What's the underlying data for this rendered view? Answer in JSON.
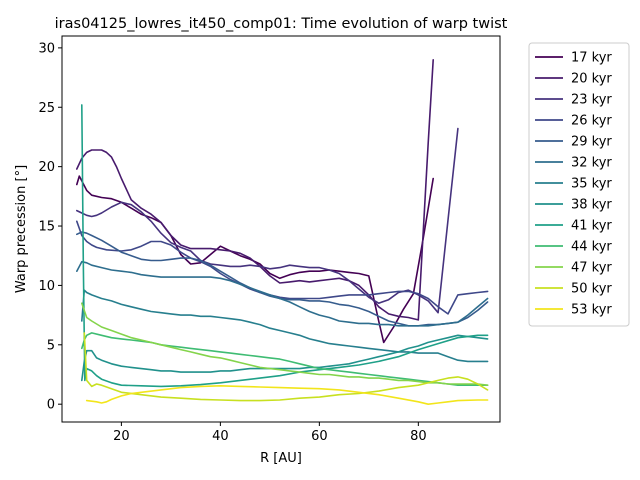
{
  "chart_data": {
    "type": "line",
    "title": "iras04125_lowres_it450_comp01: Time evolution of warp twist",
    "xlabel": "R [AU]",
    "ylabel": "Warp precession [°]",
    "xlim": [
      8,
      96.5
    ],
    "ylim": [
      -1.5,
      31
    ],
    "xticks": [
      20,
      40,
      60,
      80
    ],
    "yticks": [
      0,
      5,
      10,
      15,
      20,
      25,
      30
    ],
    "legend_position": "outside-right",
    "grid": false,
    "series": [
      {
        "name": "17 kyr",
        "color": "#440154",
        "x": [
          11,
          11.5,
          12,
          13,
          14,
          16,
          18,
          20,
          22,
          24,
          26,
          28,
          30,
          32,
          34,
          36,
          38,
          40,
          42,
          44,
          46,
          48,
          50,
          52,
          54,
          56,
          58,
          60,
          62,
          64,
          66,
          68,
          70,
          72,
          73,
          75,
          77,
          79,
          81,
          83
        ],
        "y": [
          18.5,
          19.2,
          18.8,
          18.0,
          17.6,
          17.4,
          17.3,
          17.0,
          16.5,
          16.0,
          15.7,
          15.3,
          14.2,
          12.6,
          11.8,
          11.9,
          12.6,
          13.3,
          12.9,
          12.5,
          12.2,
          11.8,
          11.0,
          10.6,
          10.9,
          11.1,
          11.2,
          11.2,
          11.3,
          11.2,
          11.1,
          11.0,
          10.8,
          7.0,
          5.2,
          6.5,
          8.0,
          9.3,
          14.0,
          19.0
        ]
      },
      {
        "name": "20 kyr",
        "color": "#481b6d",
        "x": [
          11,
          12,
          13,
          14,
          15,
          16,
          17,
          18,
          19,
          20,
          22,
          24,
          26,
          28,
          30,
          32,
          34,
          36,
          38,
          40,
          42,
          44,
          46,
          48,
          50,
          52,
          54,
          56,
          58,
          60,
          62,
          64,
          66,
          68,
          70,
          72,
          74,
          76,
          78,
          80,
          82,
          83
        ],
        "y": [
          19.8,
          20.7,
          21.2,
          21.4,
          21.4,
          21.4,
          21.2,
          20.8,
          20.0,
          19.0,
          17.2,
          16.5,
          16.0,
          15.3,
          14.2,
          13.4,
          13.1,
          13.1,
          13.1,
          13.0,
          12.9,
          12.7,
          12.3,
          11.6,
          10.8,
          10.2,
          10.3,
          10.4,
          10.3,
          10.4,
          10.5,
          10.6,
          10.4,
          10.0,
          9.2,
          8.2,
          7.6,
          7.4,
          7.3,
          7.1,
          22.0,
          29.0
        ]
      },
      {
        "name": "23 kyr",
        "color": "#46337e",
        "x": [
          11,
          12,
          13,
          14,
          15,
          16,
          18,
          20,
          22,
          24,
          26,
          28,
          30,
          32,
          34,
          36,
          38,
          40,
          42,
          44,
          46,
          48,
          50,
          52,
          54,
          56,
          58,
          60,
          62,
          64,
          66,
          68,
          70,
          72,
          74,
          76,
          78,
          80,
          82,
          84,
          86,
          88
        ],
        "y": [
          16.3,
          16.1,
          15.9,
          15.8,
          15.9,
          16.1,
          16.6,
          17.0,
          16.8,
          16.2,
          15.4,
          14.4,
          13.6,
          13.2,
          12.9,
          12.1,
          11.8,
          11.7,
          11.6,
          11.6,
          11.7,
          11.6,
          11.4,
          11.5,
          11.7,
          11.6,
          11.5,
          11.5,
          11.3,
          11.0,
          10.4,
          9.7,
          9.0,
          8.5,
          8.8,
          9.4,
          9.6,
          9.2,
          8.7,
          7.7,
          15.5,
          23.2
        ]
      },
      {
        "name": "26 kyr",
        "color": "#3f4889",
        "x": [
          11,
          11.5,
          12,
          13,
          14,
          15,
          17,
          20,
          22,
          24,
          26,
          28,
          30,
          32,
          34,
          36,
          38,
          40,
          42,
          44,
          46,
          48,
          50,
          52,
          54,
          56,
          58,
          60,
          62,
          64,
          66,
          68,
          70,
          72,
          74,
          76,
          78,
          80,
          82,
          84,
          86,
          88,
          90,
          92,
          94
        ],
        "y": [
          15.4,
          14.8,
          14.2,
          13.7,
          13.4,
          13.2,
          13.0,
          12.9,
          13.0,
          13.3,
          13.7,
          13.7,
          13.4,
          12.8,
          12.3,
          12.0,
          11.6,
          11.0,
          10.5,
          10.1,
          9.7,
          9.4,
          9.2,
          9.0,
          8.9,
          8.9,
          8.9,
          8.9,
          9.0,
          9.1,
          9.2,
          9.2,
          9.2,
          9.3,
          9.4,
          9.5,
          9.5,
          9.3,
          8.9,
          8.2,
          7.6,
          9.2,
          9.3,
          9.4,
          9.5
        ]
      },
      {
        "name": "29 kyr",
        "color": "#365c8d",
        "x": [
          11,
          12,
          13,
          14,
          16,
          18,
          20,
          22,
          24,
          26,
          28,
          30,
          32,
          34,
          36,
          38,
          40,
          42,
          44,
          46,
          48,
          50,
          52,
          54,
          56,
          58,
          60,
          62,
          64,
          66,
          68,
          70,
          72,
          74,
          76,
          78,
          80,
          82,
          84,
          86,
          88,
          90,
          92,
          94
        ],
        "y": [
          14.3,
          14.5,
          14.4,
          14.2,
          13.8,
          13.3,
          12.8,
          12.5,
          12.2,
          12.1,
          12.1,
          12.2,
          12.3,
          12.3,
          12.1,
          11.7,
          11.2,
          10.7,
          10.2,
          9.8,
          9.4,
          9.1,
          8.9,
          8.8,
          8.8,
          8.7,
          8.7,
          8.6,
          8.4,
          8.3,
          8.1,
          7.8,
          7.4,
          7.0,
          6.8,
          6.6,
          6.6,
          6.7,
          6.7,
          6.8,
          6.9,
          7.3,
          7.9,
          8.6
        ]
      },
      {
        "name": "32 kyr",
        "color": "#2e6e8e",
        "x": [
          11,
          12,
          13,
          14,
          16,
          18,
          20,
          22,
          24,
          26,
          28,
          30,
          32,
          34,
          36,
          38,
          40,
          42,
          44,
          46,
          48,
          50,
          52,
          54,
          56,
          58,
          60,
          62,
          64,
          66,
          68,
          70,
          72,
          74,
          76,
          78,
          80,
          82,
          84,
          86,
          88,
          90,
          92,
          94
        ],
        "y": [
          11.2,
          12.0,
          11.9,
          11.7,
          11.5,
          11.3,
          11.2,
          11.1,
          10.9,
          10.8,
          10.7,
          10.7,
          10.7,
          10.7,
          10.7,
          10.7,
          10.6,
          10.4,
          10.1,
          9.8,
          9.5,
          9.2,
          8.9,
          8.6,
          8.2,
          7.8,
          7.5,
          7.3,
          7.0,
          6.9,
          6.8,
          6.8,
          6.7,
          6.7,
          6.6,
          6.6,
          6.6,
          6.6,
          6.7,
          6.8,
          6.9,
          7.5,
          8.2,
          8.9
        ]
      },
      {
        "name": "35 kyr",
        "color": "#277f8e",
        "x": [
          12,
          12.5,
          13,
          14,
          16,
          18,
          20,
          22,
          24,
          26,
          28,
          30,
          32,
          34,
          36,
          38,
          40,
          42,
          44,
          46,
          48,
          50,
          52,
          54,
          56,
          58,
          60,
          62,
          64,
          66,
          68,
          70,
          72,
          74,
          76,
          78,
          80,
          82,
          84,
          86,
          88,
          90,
          92,
          94
        ],
        "y": [
          7.0,
          9.6,
          9.4,
          9.2,
          8.9,
          8.7,
          8.4,
          8.2,
          8.0,
          7.8,
          7.7,
          7.6,
          7.5,
          7.5,
          7.4,
          7.4,
          7.3,
          7.2,
          7.1,
          6.9,
          6.7,
          6.4,
          6.2,
          6.0,
          5.8,
          5.5,
          5.3,
          5.1,
          5.0,
          4.9,
          4.8,
          4.7,
          4.6,
          4.5,
          4.4,
          4.4,
          4.3,
          4.3,
          4.3,
          4.0,
          3.7,
          3.6,
          3.6,
          3.6
        ]
      },
      {
        "name": "38 kyr",
        "color": "#21918c",
        "x": [
          12,
          12.5,
          13,
          14,
          15,
          16,
          18,
          20,
          22,
          24,
          26,
          28,
          30,
          32,
          34,
          36,
          38,
          40,
          42,
          44,
          46,
          48,
          50,
          52,
          54,
          56,
          58,
          60,
          62,
          64,
          66,
          68,
          70,
          72,
          74,
          76,
          78,
          80,
          82,
          84,
          86,
          88,
          90,
          92,
          94
        ],
        "y": [
          2.0,
          3.6,
          4.5,
          4.5,
          3.9,
          3.7,
          3.4,
          3.2,
          3.1,
          3.0,
          2.9,
          2.8,
          2.8,
          2.7,
          2.7,
          2.7,
          2.7,
          2.8,
          2.8,
          2.9,
          3.0,
          3.0,
          3.0,
          3.0,
          3.0,
          3.0,
          3.1,
          3.1,
          3.2,
          3.3,
          3.4,
          3.6,
          3.8,
          4.0,
          4.2,
          4.4,
          4.7,
          4.9,
          5.2,
          5.4,
          5.6,
          5.8,
          5.7,
          5.6,
          5.5
        ]
      },
      {
        "name": "41 kyr",
        "color": "#1fa088",
        "x": [
          12,
          12.3,
          12.6,
          13,
          14,
          15,
          16,
          18,
          20,
          24,
          28,
          32,
          36,
          40,
          44,
          48,
          52,
          56,
          60,
          64,
          68,
          72,
          76,
          80,
          84,
          88,
          92,
          94
        ],
        "y": [
          25.2,
          12.0,
          2.0,
          3.0,
          2.8,
          2.4,
          2.1,
          1.8,
          1.6,
          1.55,
          1.5,
          1.55,
          1.65,
          1.8,
          2.0,
          2.2,
          2.4,
          2.7,
          2.9,
          3.1,
          3.3,
          3.6,
          4.0,
          4.6,
          5.1,
          5.6,
          5.8,
          5.8
        ]
      },
      {
        "name": "44 kyr",
        "color": "#3fbc73",
        "x": [
          12,
          12.5,
          13,
          14,
          16,
          18,
          20,
          22,
          24,
          26,
          28,
          30,
          32,
          34,
          36,
          38,
          40,
          42,
          44,
          46,
          48,
          50,
          52,
          54,
          56,
          58,
          60,
          62,
          64,
          66,
          68,
          70,
          72,
          74,
          76,
          78,
          80,
          82,
          84,
          86,
          88,
          90,
          92,
          94
        ],
        "y": [
          4.7,
          5.4,
          5.8,
          6.0,
          5.8,
          5.6,
          5.5,
          5.4,
          5.3,
          5.2,
          5.0,
          4.9,
          4.8,
          4.7,
          4.6,
          4.5,
          4.4,
          4.3,
          4.2,
          4.1,
          4.0,
          3.9,
          3.8,
          3.6,
          3.4,
          3.2,
          3.0,
          2.9,
          2.8,
          2.7,
          2.6,
          2.5,
          2.4,
          2.3,
          2.2,
          2.1,
          2.0,
          1.9,
          1.8,
          1.7,
          1.6,
          1.6,
          1.6,
          1.6
        ]
      },
      {
        "name": "47 kyr",
        "color": "#84d44b",
        "x": [
          12,
          13,
          14,
          16,
          18,
          20,
          22,
          24,
          26,
          28,
          30,
          32,
          34,
          36,
          38,
          40,
          42,
          44,
          46,
          48,
          50,
          52,
          54,
          56,
          58,
          60,
          62,
          64,
          66,
          68,
          70,
          72,
          74,
          76,
          78,
          80,
          82,
          84,
          86,
          88,
          90,
          92,
          94
        ],
        "y": [
          8.5,
          7.3,
          7.0,
          6.5,
          6.2,
          5.9,
          5.6,
          5.4,
          5.2,
          5.0,
          4.8,
          4.6,
          4.4,
          4.2,
          4.0,
          3.9,
          3.7,
          3.5,
          3.3,
          3.1,
          3.0,
          2.9,
          2.8,
          2.7,
          2.6,
          2.5,
          2.5,
          2.4,
          2.3,
          2.3,
          2.2,
          2.2,
          2.1,
          2.0,
          2.0,
          1.9,
          1.8,
          1.8,
          1.7,
          1.7,
          1.7,
          1.7,
          1.6
        ]
      },
      {
        "name": "50 kyr",
        "color": "#c8e020",
        "x": [
          12.5,
          13,
          14,
          15,
          16,
          18,
          20,
          24,
          28,
          32,
          36,
          40,
          44,
          48,
          52,
          56,
          60,
          64,
          68,
          72,
          76,
          80,
          84,
          86,
          88,
          90,
          92,
          94
        ],
        "y": [
          6.0,
          2.0,
          1.5,
          1.7,
          1.6,
          1.3,
          1.0,
          0.8,
          0.6,
          0.5,
          0.4,
          0.35,
          0.3,
          0.3,
          0.35,
          0.5,
          0.6,
          0.8,
          0.9,
          1.1,
          1.4,
          1.6,
          2.0,
          2.2,
          2.3,
          2.1,
          1.7,
          1.2
        ]
      },
      {
        "name": "53 kyr",
        "color": "#f2e51b",
        "x": [
          13,
          14,
          15,
          16,
          17,
          18,
          20,
          22,
          24,
          28,
          32,
          36,
          40,
          44,
          48,
          52,
          56,
          60,
          64,
          68,
          72,
          76,
          80,
          82,
          84,
          86,
          88,
          92,
          94
        ],
        "y": [
          0.3,
          0.25,
          0.2,
          0.1,
          0.2,
          0.4,
          0.7,
          0.9,
          1.0,
          1.2,
          1.4,
          1.5,
          1.55,
          1.5,
          1.45,
          1.4,
          1.35,
          1.3,
          1.2,
          1.0,
          0.8,
          0.5,
          0.2,
          0.0,
          0.1,
          0.2,
          0.3,
          0.35,
          0.35
        ]
      }
    ]
  }
}
